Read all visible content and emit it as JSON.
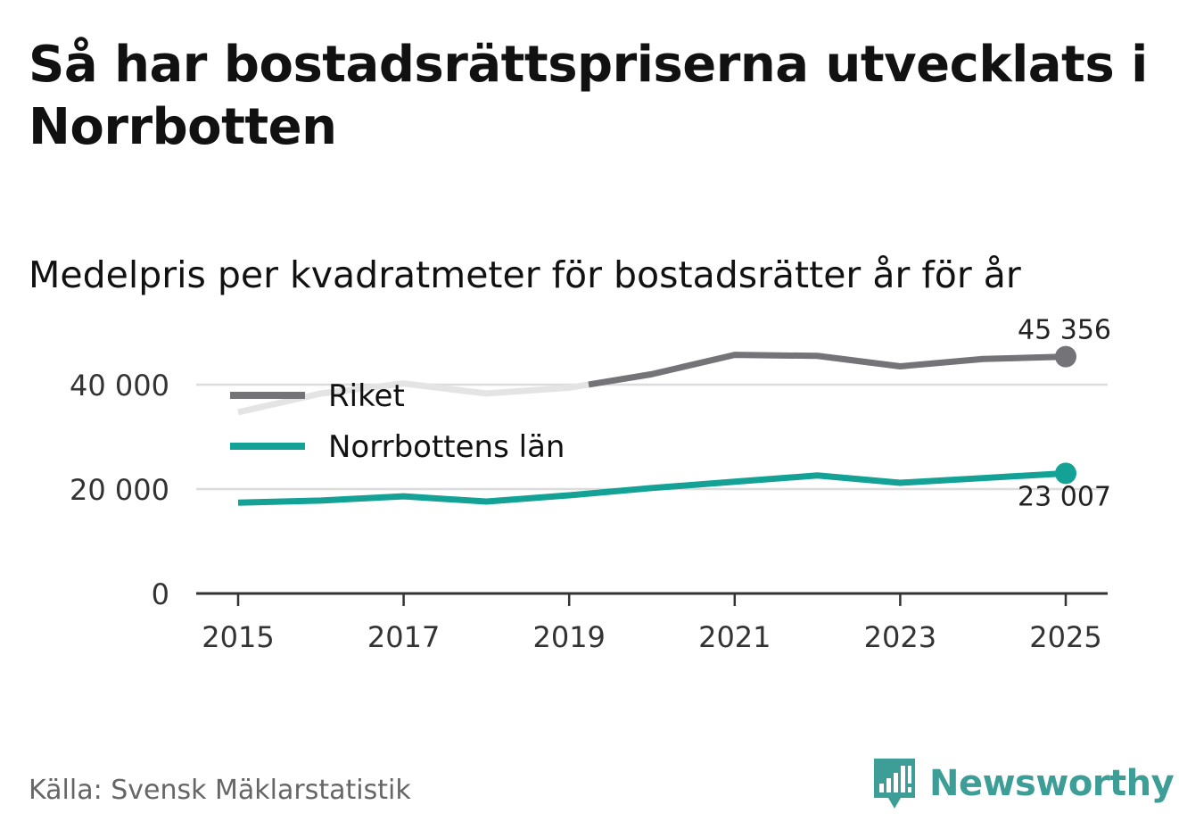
{
  "title": "Så har bostadsrättspriserna utvecklats i Norrbotten",
  "subtitle": "Medelpris per kvadratmeter för bostadsrätter år för år",
  "source": "Källa: Svensk Mäklarstatistik",
  "brand": "Newsworthy",
  "colors": {
    "riket": "#737378",
    "riket_faded": "#e4e4e4",
    "norrbotten": "#14a196",
    "grid": "#dcdcdc",
    "axis": "#333333",
    "brand": "#3c9e97"
  },
  "chart_data": {
    "type": "line",
    "title": "Medelpris per kvadratmeter för bostadsrätter år för år",
    "xlabel": "",
    "ylabel": "",
    "x": [
      2015,
      2016,
      2017,
      2018,
      2019,
      2020,
      2021,
      2022,
      2023,
      2024,
      2025
    ],
    "x_ticks": [
      "2015",
      "2017",
      "2019",
      "2021",
      "2023",
      "2025"
    ],
    "y_ticks": [
      {
        "value": 0,
        "label": "0"
      },
      {
        "value": 20000,
        "label": "20 000"
      },
      {
        "value": 40000,
        "label": "40 000"
      }
    ],
    "ylim": [
      0,
      47000
    ],
    "grid": true,
    "legend_position": "top-left",
    "series": [
      {
        "name": "Riket",
        "key": "riket",
        "values": [
          34700,
          38300,
          40200,
          38300,
          39400,
          42000,
          45700,
          45500,
          43500,
          44900,
          45356
        ],
        "end_label": "45 356"
      },
      {
        "name": "Norrbottens län",
        "key": "norrbotten",
        "values": [
          17400,
          17800,
          18600,
          17600,
          18800,
          20200,
          21400,
          22600,
          21200,
          22100,
          23007
        ],
        "end_label": "23 007"
      }
    ]
  }
}
